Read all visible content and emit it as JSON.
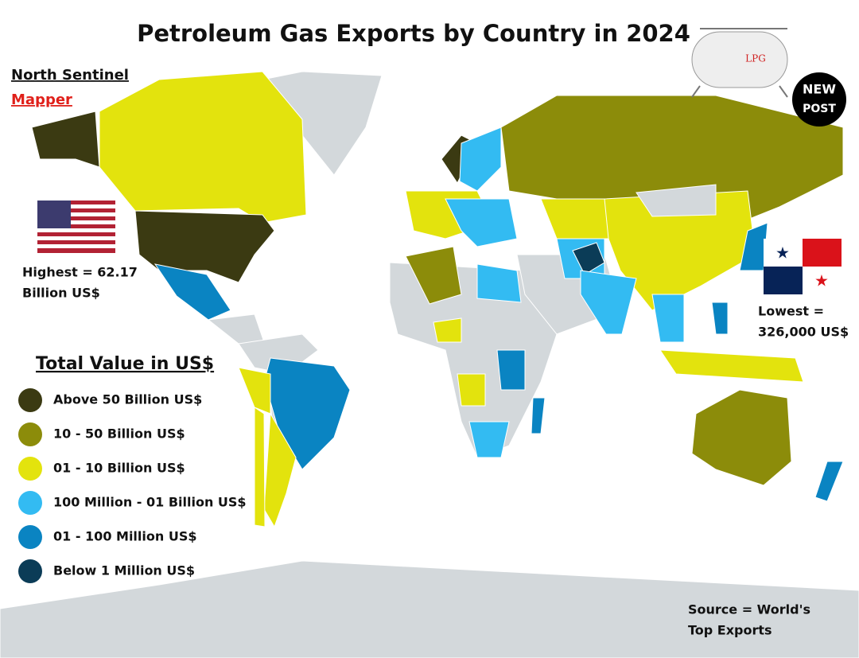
{
  "header": {
    "title": "Petroleum Gas Exports by Country in 2024"
  },
  "brand": {
    "line1": "North Sentinel",
    "line2": "Mapper"
  },
  "highest": {
    "lines": [
      "Highest = 62.17",
      "Billion US$"
    ]
  },
  "lowest": {
    "lines": [
      "Lowest =",
      "326,000 US$"
    ]
  },
  "legend": {
    "title": "Total Value in US$",
    "items": [
      {
        "label": "Above 50 Billion US$",
        "color": "#3b3a12"
      },
      {
        "label": "10 - 50 Billion US$",
        "color": "#8c8c0a"
      },
      {
        "label": "01 - 10 Billion US$",
        "color": "#e3e30d"
      },
      {
        "label": "100 Million - 01 Billion US$",
        "color": "#33bbf2"
      },
      {
        "label": "01 - 100 Million US$",
        "color": "#0a84c2"
      },
      {
        "label": "Below 1 Million US$",
        "color": "#0b3c57"
      }
    ]
  },
  "source": {
    "lines": [
      "Source = World's",
      "Top Exports"
    ]
  },
  "logos": {
    "tank": "LPG",
    "new_post": [
      "NEW",
      "POST"
    ]
  }
}
